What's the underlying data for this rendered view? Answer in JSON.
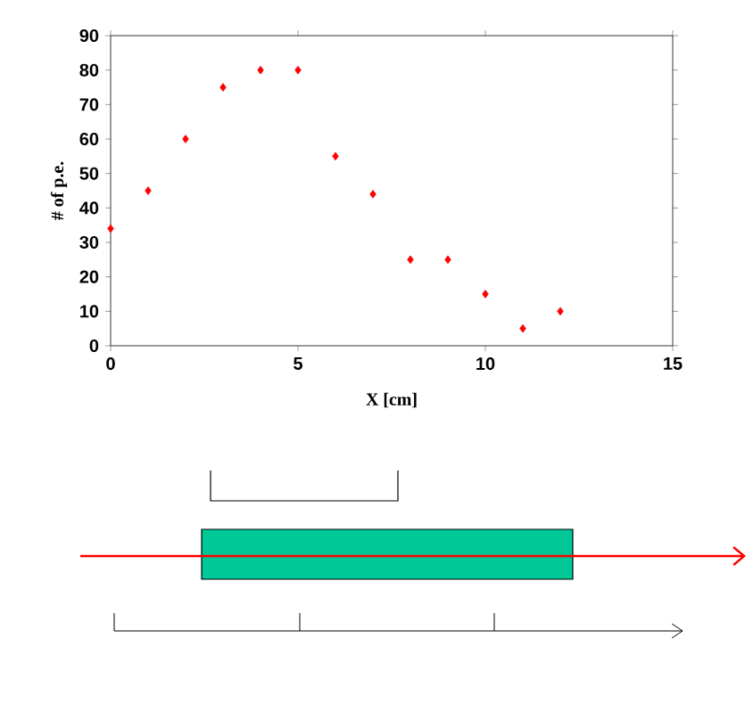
{
  "chart_data": {
    "type": "scatter",
    "xlabel": "X [cm]",
    "ylabel": "# of p.e.",
    "x": [
      0,
      1,
      2,
      3,
      4,
      5,
      6,
      7,
      8,
      9,
      10,
      11,
      12
    ],
    "series": [
      {
        "color": "#ff0000",
        "values": [
          34,
          45,
          60,
          75,
          80,
          80,
          55,
          44,
          25,
          25,
          15,
          5,
          10
        ]
      }
    ],
    "marker": "diamond",
    "grid": false,
    "xlim": [
      0,
      15
    ],
    "xticks": [
      0,
      5,
      10,
      15
    ],
    "ylim": [
      0,
      90
    ],
    "yticks": [
      0,
      10,
      20,
      30,
      40,
      50,
      60,
      70,
      80,
      90
    ]
  }
}
